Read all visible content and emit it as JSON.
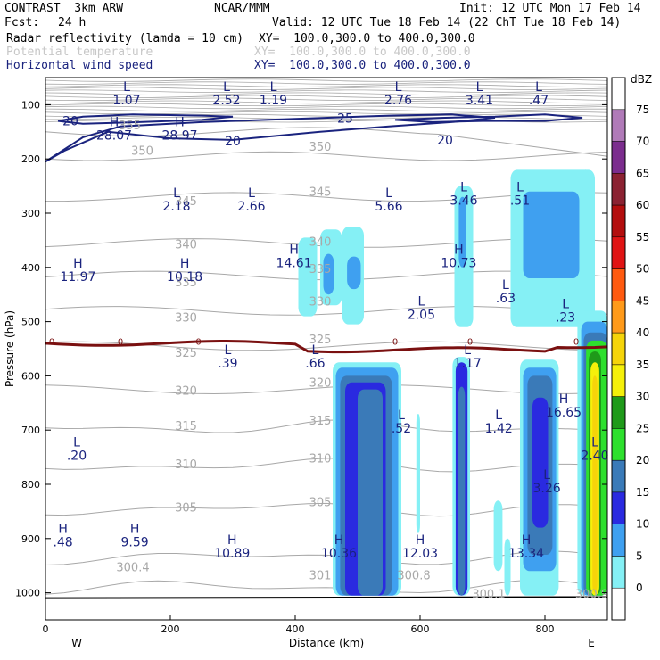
{
  "header": {
    "model": "CONTRAST  3km ARW",
    "org": "NCAR/MMM",
    "init": "Init: 12 UTC Mon 17 Feb 14",
    "fcst_label": "Fcst:",
    "fcst_value": "24 h",
    "valid": "Valid: 12 UTC Tue 18 Feb 14 (22 ChT Tue 18 Feb 14)"
  },
  "fields": [
    {
      "name": "Radar reflectivity (lamda = 10 cm)",
      "xy": "XY=  100.0,300.0 to 400.0,300.0",
      "style": "black"
    },
    {
      "name": "Potential temperature",
      "xy": "XY=  100.0,300.0 to 400.0,300.0",
      "style": "ghost"
    },
    {
      "name": "Horizontal wind speed",
      "xy": "XY=  100.0,300.0 to 400.0,300.0",
      "style": "navy"
    }
  ],
  "colors": {
    "theta": "#a8a8a8",
    "wind": "#1a237e",
    "freezing": "#7a1010",
    "text_navy": "#1a237e"
  },
  "chart_data": {
    "type": "contour",
    "xlabel": "Distance (km)",
    "ylabel": "Pressure (hPa)",
    "xlim": [
      0,
      900
    ],
    "ylim": [
      1050,
      50
    ],
    "x_ticks": [
      0,
      200,
      400,
      600,
      800
    ],
    "y_ticks": [
      100,
      200,
      300,
      400,
      500,
      600,
      700,
      800,
      900,
      1000
    ],
    "direction_labels": {
      "west": "W",
      "east": "E"
    },
    "colorbar": {
      "unit": "dBZ",
      "levels": [
        75,
        70,
        65,
        60,
        55,
        50,
        45,
        40,
        35,
        30,
        25,
        20,
        15,
        10,
        5,
        0
      ],
      "colors": [
        "#ffffff",
        "#b07ab8",
        "#7b2d8e",
        "#8b2232",
        "#b30e0e",
        "#e01414",
        "#ff5a10",
        "#ff9a1a",
        "#f5d40a",
        "#f5f00a",
        "#1f9a1a",
        "#2ee02e",
        "#3a7ab8",
        "#2a2ae0",
        "#3fa0f0",
        "#85f0f5",
        "#ffffff"
      ]
    },
    "freezing_level": {
      "label": "0",
      "pressure_hPa": 555
    },
    "theta_contours": [
      {
        "label": "355",
        "x_km": 135,
        "p_hPa": 145
      },
      {
        "label": "350",
        "x_km": 155,
        "p_hPa": 192
      },
      {
        "label": "350",
        "x_km": 440,
        "p_hPa": 185
      },
      {
        "label": "345",
        "x_km": 225,
        "p_hPa": 285
      },
      {
        "label": "345",
        "x_km": 440,
        "p_hPa": 268
      },
      {
        "label": "340",
        "x_km": 225,
        "p_hPa": 365
      },
      {
        "label": "340",
        "x_km": 440,
        "p_hPa": 360
      },
      {
        "label": "335",
        "x_km": 225,
        "p_hPa": 435
      },
      {
        "label": "335",
        "x_km": 440,
        "p_hPa": 410
      },
      {
        "label": "330",
        "x_km": 225,
        "p_hPa": 500
      },
      {
        "label": "330",
        "x_km": 440,
        "p_hPa": 470
      },
      {
        "label": "325",
        "x_km": 225,
        "p_hPa": 565
      },
      {
        "label": "325",
        "x_km": 440,
        "p_hPa": 540
      },
      {
        "label": "320",
        "x_km": 225,
        "p_hPa": 635
      },
      {
        "label": "320",
        "x_km": 440,
        "p_hPa": 620
      },
      {
        "label": "315",
        "x_km": 225,
        "p_hPa": 700
      },
      {
        "label": "315",
        "x_km": 440,
        "p_hPa": 690
      },
      {
        "label": "310",
        "x_km": 225,
        "p_hPa": 770
      },
      {
        "label": "310",
        "x_km": 440,
        "p_hPa": 760
      },
      {
        "label": "305",
        "x_km": 225,
        "p_hPa": 850
      },
      {
        "label": "305",
        "x_km": 440,
        "p_hPa": 840
      },
      {
        "label": "300.4",
        "x_km": 140,
        "p_hPa": 960
      },
      {
        "label": "301",
        "x_km": 440,
        "p_hPa": 975
      },
      {
        "label": "300.8",
        "x_km": 590,
        "p_hPa": 975
      },
      {
        "label": "300.1",
        "x_km": 710,
        "p_hPa": 1010
      },
      {
        "label": "300.9",
        "x_km": 875,
        "p_hPa": 1010
      }
    ],
    "wind_contours": [
      {
        "label": "20",
        "x_km": 40,
        "p_hPa": 130
      },
      {
        "label": "25",
        "x_km": 480,
        "p_hPa": 125
      },
      {
        "label": "20",
        "x_km": 300,
        "p_hPa": 167
      },
      {
        "label": "20",
        "x_km": 640,
        "p_hPa": 165
      }
    ],
    "extrema": [
      {
        "type": "L",
        "value": "1.07",
        "x_km": 130,
        "p_hPa": 75
      },
      {
        "type": "L",
        "value": "2.52",
        "x_km": 290,
        "p_hPa": 75
      },
      {
        "type": "L",
        "value": "1.19",
        "x_km": 365,
        "p_hPa": 75
      },
      {
        "type": "L",
        "value": "2.76",
        "x_km": 565,
        "p_hPa": 75
      },
      {
        "type": "L",
        "value": "3.41",
        "x_km": 695,
        "p_hPa": 75
      },
      {
        "type": "L",
        "value": ".47",
        "x_km": 790,
        "p_hPa": 75
      },
      {
        "type": "H",
        "value": "28.07",
        "x_km": 110,
        "p_hPa": 140
      },
      {
        "type": "H",
        "value": "28.97",
        "x_km": 215,
        "p_hPa": 140
      },
      {
        "type": "L",
        "value": "2.18",
        "x_km": 210,
        "p_hPa": 270
      },
      {
        "type": "L",
        "value": "2.66",
        "x_km": 330,
        "p_hPa": 270
      },
      {
        "type": "L",
        "value": "5.66",
        "x_km": 550,
        "p_hPa": 270
      },
      {
        "type": "L",
        "value": "3.46",
        "x_km": 670,
        "p_hPa": 260
      },
      {
        "type": "L",
        "value": ".51",
        "x_km": 760,
        "p_hPa": 260
      },
      {
        "type": "H",
        "value": "14.61",
        "x_km": 398,
        "p_hPa": 375
      },
      {
        "type": "H",
        "value": "10.73",
        "x_km": 662,
        "p_hPa": 375
      },
      {
        "type": "H",
        "value": "11.97",
        "x_km": 52,
        "p_hPa": 400
      },
      {
        "type": "H",
        "value": "10.18",
        "x_km": 223,
        "p_hPa": 400
      },
      {
        "type": "L",
        "value": ".63",
        "x_km": 737,
        "p_hPa": 440
      },
      {
        "type": "L",
        "value": "2.05",
        "x_km": 602,
        "p_hPa": 470
      },
      {
        "type": "L",
        "value": ".23",
        "x_km": 833,
        "p_hPa": 475
      },
      {
        "type": "L",
        "value": ".39",
        "x_km": 292,
        "p_hPa": 560
      },
      {
        "type": "L",
        "value": ".66",
        "x_km": 432,
        "p_hPa": 560
      },
      {
        "type": "L",
        "value": "1.17",
        "x_km": 676,
        "p_hPa": 560
      },
      {
        "type": "H",
        "value": "16.65",
        "x_km": 830,
        "p_hPa": 650
      },
      {
        "type": "L",
        "value": ".52",
        "x_km": 570,
        "p_hPa": 680
      },
      {
        "type": "L",
        "value": "1.42",
        "x_km": 726,
        "p_hPa": 680
      },
      {
        "type": "L",
        "value": ".20",
        "x_km": 50,
        "p_hPa": 730
      },
      {
        "type": "L",
        "value": "2.40",
        "x_km": 880,
        "p_hPa": 730
      },
      {
        "type": "L",
        "value": "3.26",
        "x_km": 803,
        "p_hPa": 790
      },
      {
        "type": "H",
        "value": ".48",
        "x_km": 28,
        "p_hPa": 890
      },
      {
        "type": "H",
        "value": "9.59",
        "x_km": 143,
        "p_hPa": 890
      },
      {
        "type": "H",
        "value": "10.89",
        "x_km": 299,
        "p_hPa": 910
      },
      {
        "type": "H",
        "value": "10.36",
        "x_km": 470,
        "p_hPa": 910
      },
      {
        "type": "H",
        "value": "12.03",
        "x_km": 600,
        "p_hPa": 910
      },
      {
        "type": "H",
        "value": "13.34",
        "x_km": 770,
        "p_hPa": 910
      }
    ]
  }
}
